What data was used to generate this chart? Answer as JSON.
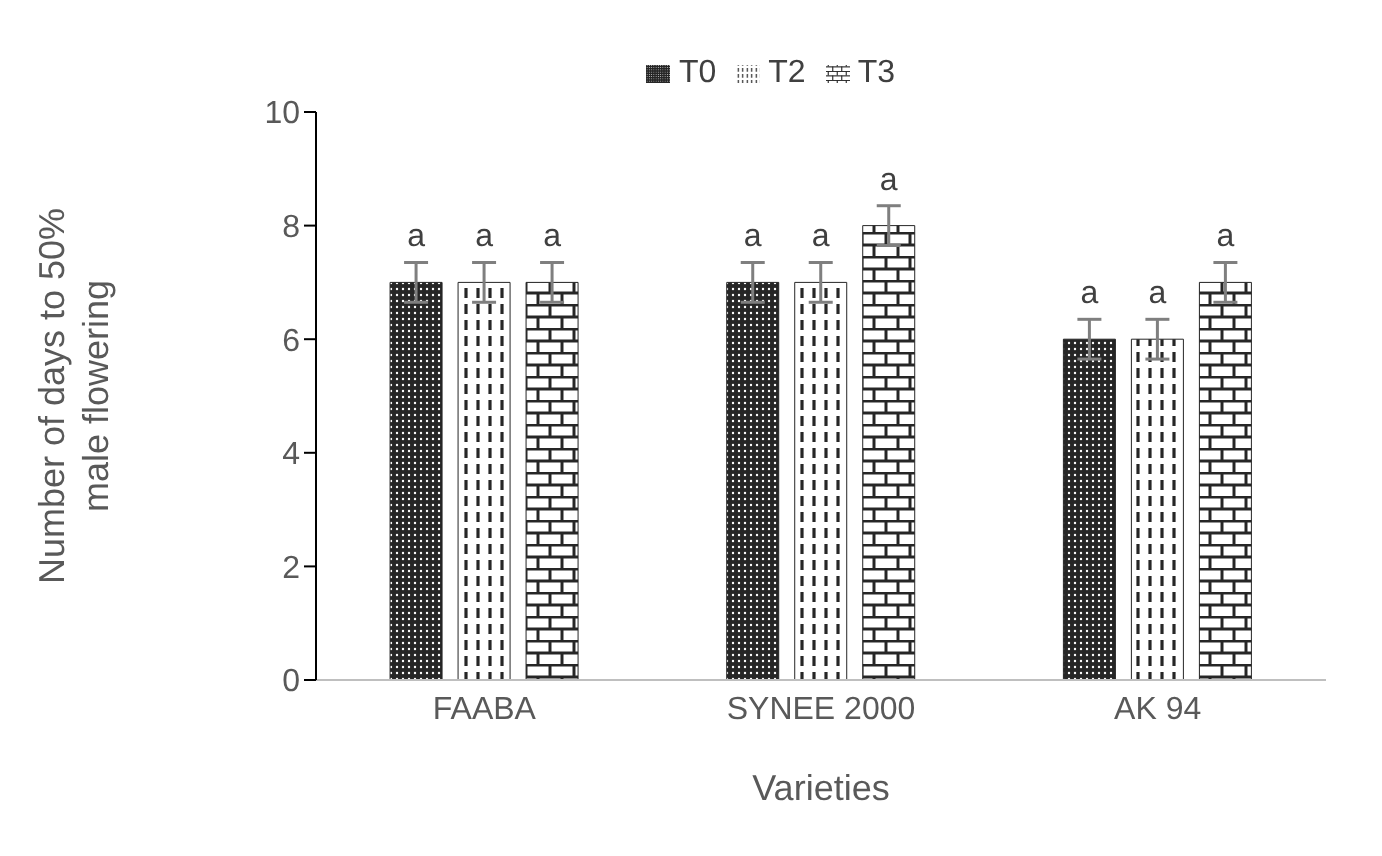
{
  "chart_data": {
    "type": "bar",
    "xlabel": "Varieties",
    "ylabel": "Number of days to 50% male flowering",
    "categories": [
      "FAABA",
      "SYNEE 2000",
      "AK 94"
    ],
    "series": [
      {
        "name": "T0",
        "color": "#262626",
        "values": [
          7,
          7,
          6
        ],
        "errors": [
          0.35,
          0.35,
          0.35
        ],
        "value_labels": [
          "a",
          "a",
          "a"
        ]
      },
      {
        "name": "T2",
        "color": "#262626",
        "values": [
          7,
          7,
          6
        ],
        "errors": [
          0.35,
          0.35,
          0.35
        ],
        "value_labels": [
          "a",
          "a",
          "a"
        ]
      },
      {
        "name": "T3",
        "color": "#262626",
        "values": [
          7,
          8,
          7
        ],
        "errors": [
          0.35,
          0.35,
          0.35
        ],
        "value_labels": [
          "a",
          "a",
          "a"
        ]
      }
    ],
    "ylim": [
      0,
      10
    ],
    "yticks": [
      0,
      2,
      4,
      6,
      8,
      10
    ],
    "legend": "top"
  }
}
